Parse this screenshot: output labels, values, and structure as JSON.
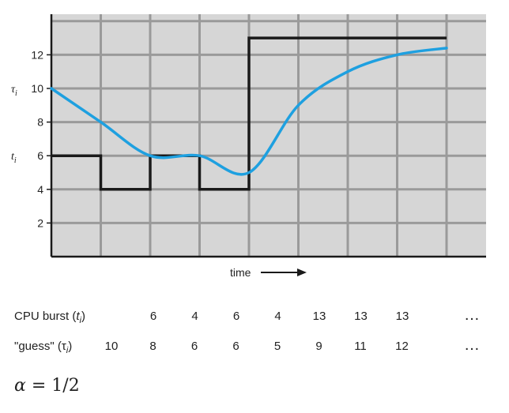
{
  "chart_data": {
    "type": "line",
    "xlabel": "time",
    "ylim": [
      0,
      14
    ],
    "y_ticks": [
      "2",
      "4",
      "6",
      "8",
      "10",
      "12"
    ],
    "y_axis_marks": [
      {
        "symbol": "τ",
        "sub": "i",
        "y": 10
      },
      {
        "symbol": "t",
        "sub": "i",
        "y": 6
      }
    ],
    "grid": true,
    "series": [
      {
        "name": "CPU burst",
        "kind": "step",
        "color": "#1a1a1a",
        "values": [
          6,
          4,
          6,
          4,
          13,
          13,
          13,
          13
        ]
      },
      {
        "name": "guess",
        "kind": "smooth",
        "color": "#1ea0e0",
        "values": [
          10,
          8,
          6,
          6,
          5,
          9,
          11,
          12,
          12.4
        ]
      }
    ]
  },
  "table": {
    "row1": {
      "label_main": "CPU burst (",
      "label_sym": "t",
      "label_sub": "i",
      "label_end": ")",
      "values": [
        "6",
        "4",
        "6",
        "4",
        "13",
        "13",
        "13"
      ],
      "ellipsis": "…"
    },
    "row2": {
      "label_main": "\"guess\" (",
      "label_sym": "τ",
      "label_sub": "i",
      "label_end": ")",
      "values": [
        "10",
        "8",
        "6",
        "6",
        "5",
        "9",
        "11",
        "12"
      ],
      "ellipsis": "…"
    }
  },
  "formula": {
    "symbol": "α",
    "rest": " = 1/2"
  },
  "colors": {
    "plot_bg": "#d6d6d6",
    "grid": "#9a9a9a",
    "axis": "#1a1a1a",
    "guess": "#1ea0e0",
    "burst": "#1a1a1a"
  }
}
